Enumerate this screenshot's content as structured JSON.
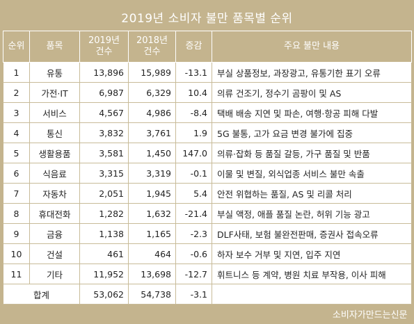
{
  "title": "2019년 소비자 불만 품목별 순위",
  "headers": {
    "rank": "순위",
    "item": "품목",
    "y2019_line1": "2019년",
    "y2019_line2": "건수",
    "y2018_line1": "2018년",
    "y2018_line2": "건수",
    "change": "증감",
    "complaints": "주요 불만 내용"
  },
  "rows": [
    {
      "rank": "1",
      "item": "유통",
      "y2019": "13,896",
      "y2018": "15,989",
      "change": "-13.1",
      "complaints": "부실 상품정보, 과장광고, 유통기한 표기 오류"
    },
    {
      "rank": "2",
      "item": "가전·IT",
      "y2019": "6,987",
      "y2018": "6,329",
      "change": "10.4",
      "complaints": "의류 건조기, 정수기 곰팡이 및 AS"
    },
    {
      "rank": "3",
      "item": "서비스",
      "y2019": "4,567",
      "y2018": "4,986",
      "change": "-8.4",
      "complaints": "택배 배송 지연 및 파손, 여행·항공 피해 다발"
    },
    {
      "rank": "4",
      "item": "통신",
      "y2019": "3,832",
      "y2018": "3,761",
      "change": "1.9",
      "complaints": "5G 불통, 고가 요금 변경 불가에 집중"
    },
    {
      "rank": "5",
      "item": "생활용품",
      "y2019": "3,581",
      "y2018": "1,450",
      "change": "147.0",
      "complaints": "의류·잡화 등 품질 갈등, 가구 품질 및 반품"
    },
    {
      "rank": "6",
      "item": "식음료",
      "y2019": "3,315",
      "y2018": "3,319",
      "change": "-0.1",
      "complaints": "이물 및 변질, 외식업종 서비스 불만 속출"
    },
    {
      "rank": "7",
      "item": "자동차",
      "y2019": "2,051",
      "y2018": "1,945",
      "change": "5.4",
      "complaints": "안전 위협하는 품질, AS 및 리콜 처리"
    },
    {
      "rank": "8",
      "item": "휴대전화",
      "y2019": "1,282",
      "y2018": "1,632",
      "change": "-21.4",
      "complaints": "부실 액정, 애플 품질 논란, 허위 기능 광고"
    },
    {
      "rank": "9",
      "item": "금융",
      "y2019": "1,138",
      "y2018": "1,165",
      "change": "-2.3",
      "complaints": "DLF사태, 보험 불완전판매, 증권사 접속오류"
    },
    {
      "rank": "10",
      "item": "건설",
      "y2019": "461",
      "y2018": "464",
      "change": "-0.6",
      "complaints": "하자 보수 거부 및 지연, 입주 지연"
    },
    {
      "rank": "11",
      "item": "기타",
      "y2019": "11,952",
      "y2018": "13,698",
      "change": "-12.7",
      "complaints": "휘트니스 등 계약, 병원 치료 부작용, 이사 피해"
    }
  ],
  "total": {
    "label": "합계",
    "y2019": "53,062",
    "y2018": "54,738",
    "change": "-3.1",
    "complaints": ""
  },
  "source": "소비자가만드는신문",
  "colors": {
    "frame": "#c4b48e",
    "header_text": "#ffffff",
    "cell_background": "#ffffff"
  }
}
